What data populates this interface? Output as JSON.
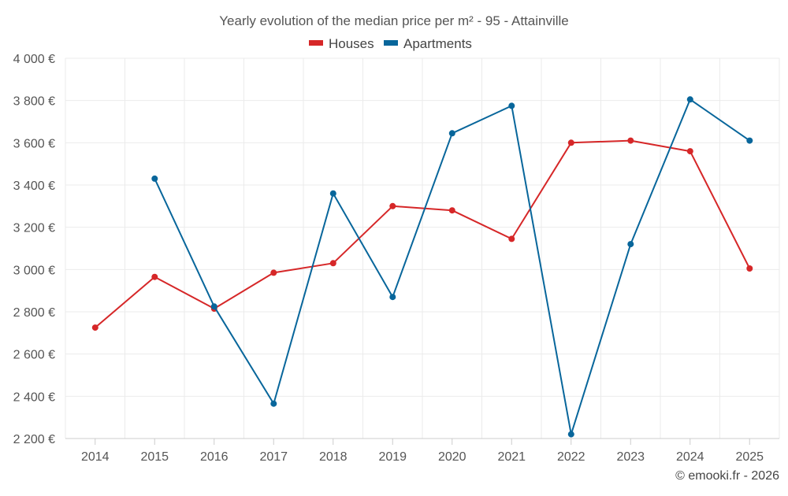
{
  "chart_data": {
    "type": "line",
    "title": "Yearly evolution of the median price per m² - 95 - Attainville",
    "xlabel": "",
    "ylabel": "",
    "categories": [
      "2014",
      "2015",
      "2016",
      "2017",
      "2018",
      "2019",
      "2020",
      "2021",
      "2022",
      "2023",
      "2024",
      "2025"
    ],
    "ylim": [
      2200,
      4000
    ],
    "yticks": [
      2200,
      2400,
      2600,
      2800,
      3000,
      3200,
      3400,
      3600,
      3800,
      4000
    ],
    "ytick_labels": [
      "2 200 €",
      "2 400 €",
      "2 600 €",
      "2 800 €",
      "3 000 €",
      "3 200 €",
      "3 400 €",
      "3 600 €",
      "3 800 €",
      "4 000 €"
    ],
    "grid": true,
    "legend_position": "top-center",
    "series": [
      {
        "name": "Houses",
        "color": "#d62728",
        "values": [
          2725,
          2965,
          2815,
          2985,
          3030,
          3300,
          3280,
          3145,
          3600,
          3610,
          3560,
          3005
        ]
      },
      {
        "name": "Apartments",
        "color": "#08669b",
        "values": [
          null,
          3430,
          2825,
          2365,
          3360,
          2870,
          3645,
          3775,
          2220,
          3120,
          3805,
          3610
        ]
      }
    ],
    "credit": "© emooki.fr - 2026"
  }
}
